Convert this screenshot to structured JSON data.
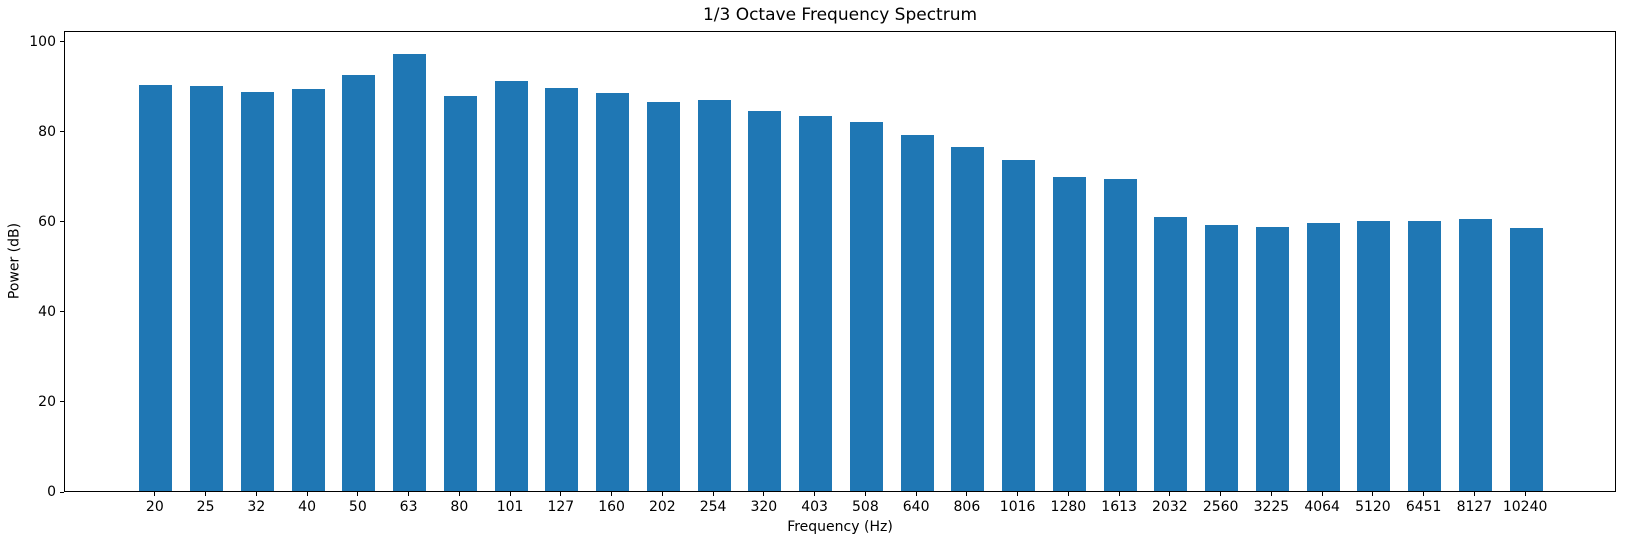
{
  "chart_data": {
    "type": "bar",
    "title": "1/3 Octave Frequency Spectrum",
    "xlabel": "Frequency (Hz)",
    "ylabel": "Power (dB)",
    "categories": [
      "20",
      "25",
      "32",
      "40",
      "50",
      "63",
      "80",
      "101",
      "127",
      "160",
      "202",
      "254",
      "320",
      "403",
      "508",
      "640",
      "806",
      "1016",
      "1280",
      "1613",
      "2032",
      "2560",
      "3225",
      "4064",
      "5120",
      "6451",
      "8127",
      "10240"
    ],
    "values": [
      90.2,
      90.0,
      88.7,
      89.4,
      92.3,
      97.0,
      87.8,
      91.0,
      89.5,
      88.4,
      86.5,
      86.8,
      84.3,
      83.3,
      82.0,
      79.0,
      76.5,
      73.5,
      69.8,
      69.2,
      60.8,
      59.1,
      58.7,
      59.6,
      60.0,
      59.9,
      60.4,
      58.4
    ],
    "yticks": [
      0,
      20,
      40,
      60,
      80,
      100
    ],
    "ylim": [
      0,
      102.4
    ],
    "bar_color": "#1f77b4",
    "bar_width_fraction": 0.65,
    "grid": false,
    "legend": null,
    "plot_background": "#ffffff",
    "spine_color": "#000000"
  }
}
